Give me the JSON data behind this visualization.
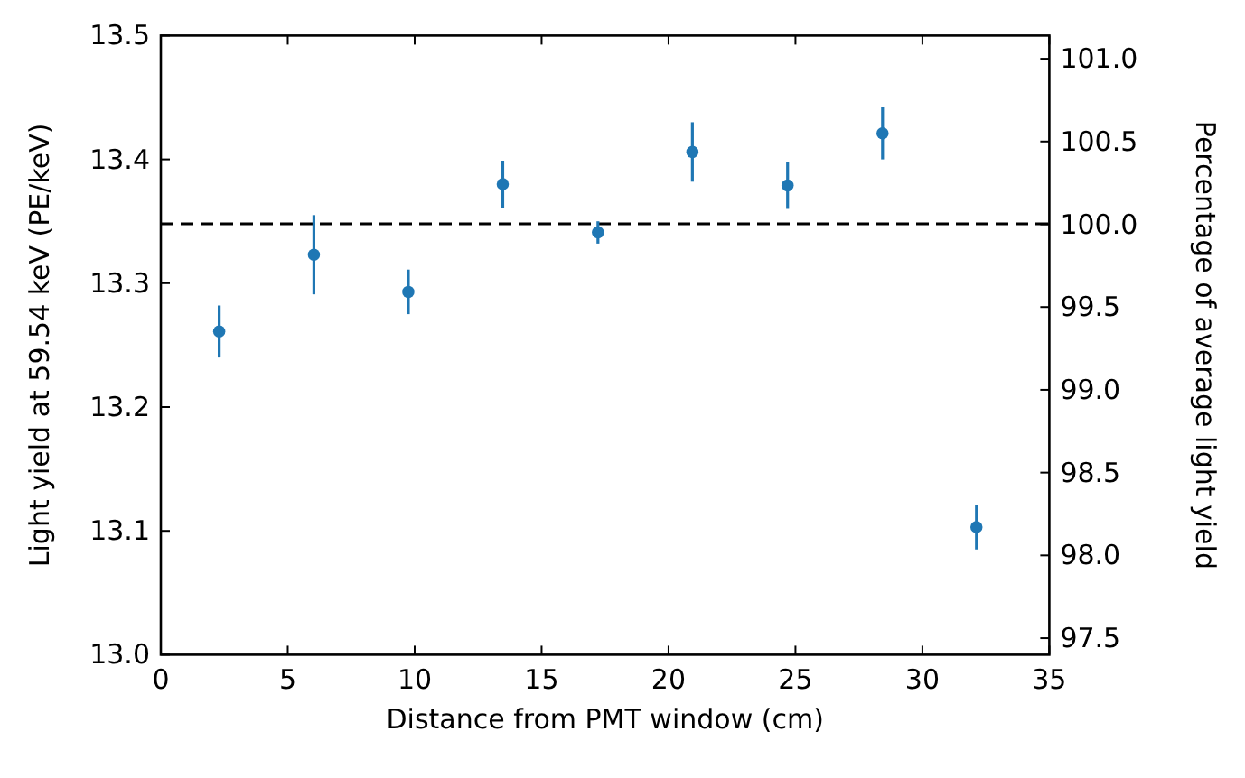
{
  "chart_data": {
    "type": "scatter",
    "xlabel": "Distance from PMT window (cm)",
    "ylabel": "Light yield at 59.54 keV (PE/keV)",
    "y2label": "Percentage of average light yield",
    "x": [
      2.3,
      6.03,
      9.75,
      13.47,
      17.22,
      20.94,
      24.69,
      28.43,
      32.13
    ],
    "series": [
      {
        "color": "#1f77b4",
        "values": [
          13.261,
          13.323,
          13.293,
          13.38,
          13.341,
          13.406,
          13.379,
          13.421,
          13.103
        ],
        "errors": [
          0.021,
          0.032,
          0.018,
          0.019,
          0.009,
          0.024,
          0.019,
          0.021,
          0.018
        ]
      }
    ],
    "xlim": [
      0,
      35
    ],
    "xticks": [
      0,
      5,
      10,
      15,
      20,
      25,
      30,
      35
    ],
    "ylim": [
      13.0,
      13.5
    ],
    "yticks": [
      {
        "value": 13,
        "label": "13.0"
      },
      13.1,
      13.2,
      13.3,
      13.4,
      13.5
    ],
    "y2lim": [
      97.4,
      101.14
    ],
    "y2ticks": [
      97.5,
      {
        "value": 98,
        "label": "98.0"
      },
      98.5,
      {
        "value": 99,
        "label": "99.0"
      },
      99.5,
      {
        "value": 100,
        "label": "100.0"
      },
      100.5,
      {
        "value": 101,
        "label": "101.0"
      }
    ],
    "ref_lines": [
      {
        "axis": "y",
        "value": 13.348,
        "color": "#000000",
        "line_style": "dashed"
      }
    ],
    "marker": "circle",
    "grid": false
  }
}
